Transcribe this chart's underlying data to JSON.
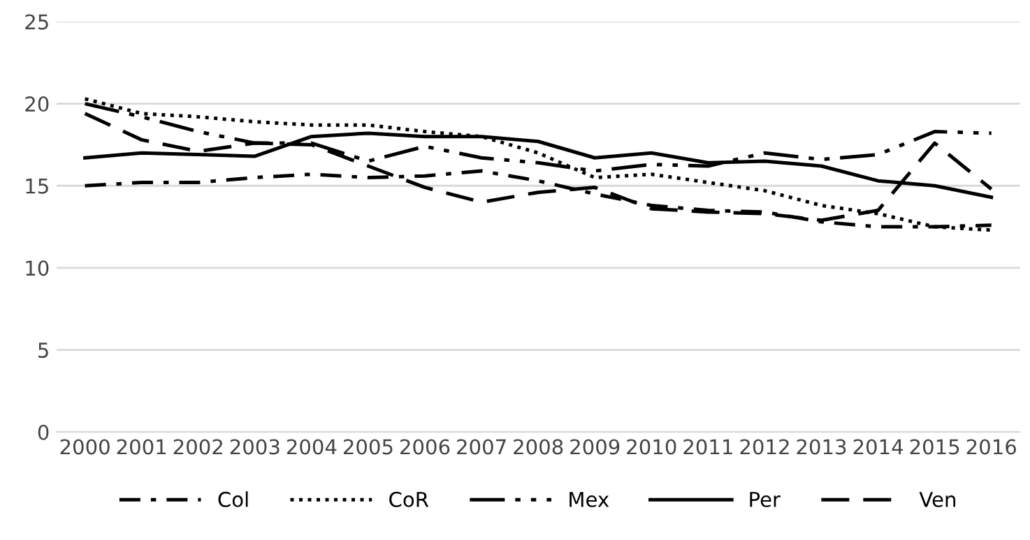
{
  "chart_data": {
    "type": "line",
    "categories": [
      "2000",
      "2001",
      "2002",
      "2003",
      "2004",
      "2005",
      "2006",
      "2007",
      "2008",
      "2009",
      "2010",
      "2011",
      "2012",
      "2013",
      "2014",
      "2015",
      "2016"
    ],
    "series": [
      {
        "name": "Col",
        "color": "#000000",
        "line_style": "dashdot",
        "values": [
          15.0,
          15.2,
          15.2,
          15.5,
          15.7,
          15.5,
          15.6,
          15.9,
          15.3,
          14.5,
          13.8,
          13.5,
          13.4,
          12.8,
          12.5,
          12.5,
          12.6
        ]
      },
      {
        "name": "CoR",
        "color": "#000000",
        "line_style": "dotted",
        "values": [
          20.3,
          19.4,
          19.2,
          18.9,
          18.7,
          18.7,
          18.3,
          18.0,
          17.0,
          15.5,
          15.7,
          15.2,
          14.7,
          13.8,
          13.3,
          12.5,
          12.3
        ]
      },
      {
        "name": "Mex",
        "color": "#000000",
        "line_style": "dashdotdot",
        "values": [
          20.0,
          19.2,
          18.3,
          17.6,
          17.6,
          16.5,
          17.4,
          16.7,
          16.4,
          15.9,
          16.3,
          16.2,
          17.0,
          16.6,
          16.9,
          18.3,
          18.2
        ]
      },
      {
        "name": "Per",
        "color": "#000000",
        "line_style": "solid",
        "values": [
          16.7,
          17.0,
          16.9,
          16.8,
          18.0,
          18.2,
          18.0,
          18.0,
          17.7,
          16.7,
          17.0,
          16.4,
          16.5,
          16.2,
          15.3,
          15.0,
          14.3
        ]
      },
      {
        "name": "Ven",
        "color": "#000000",
        "line_style": "dashed",
        "values": [
          19.4,
          17.8,
          17.1,
          17.6,
          17.5,
          16.2,
          14.9,
          14.0,
          14.6,
          14.9,
          13.6,
          13.4,
          13.3,
          12.9,
          13.5,
          17.6,
          14.8
        ]
      }
    ],
    "ylim": [
      0,
      25
    ],
    "yticks": [
      0,
      5,
      10,
      15,
      20,
      25
    ],
    "grid": "y",
    "legend": "bottom",
    "marker": "none"
  }
}
